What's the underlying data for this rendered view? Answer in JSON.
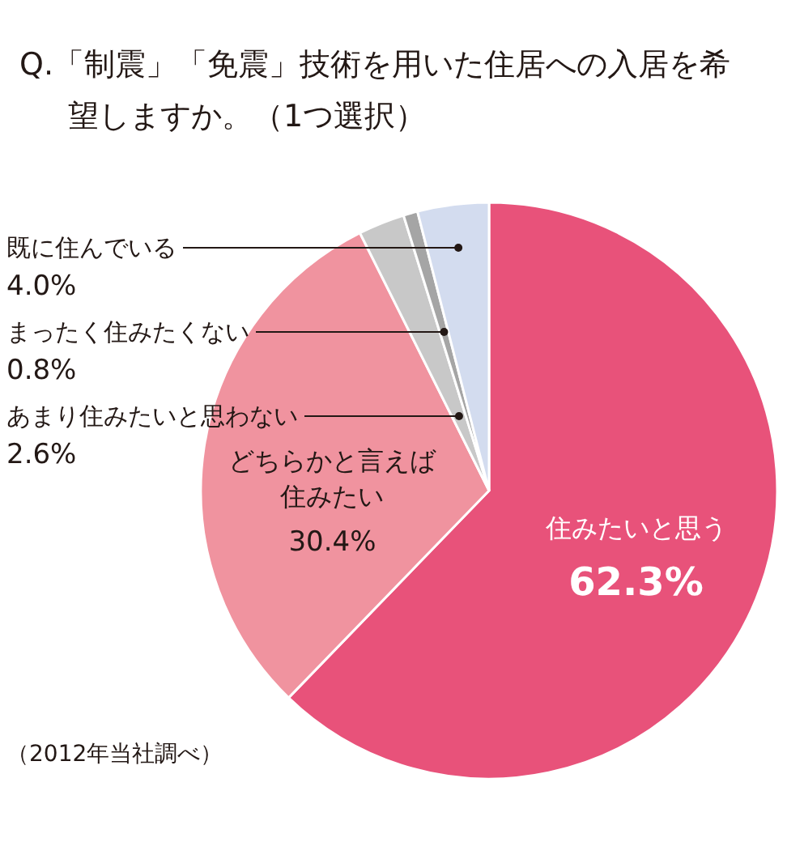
{
  "chart_data": {
    "type": "pie",
    "title": "Q.「制震」「免震」技術を用いた住居への入居を希望しますか。（1つ選択）",
    "categories": [
      "住みたいと思う",
      "どちらかと言えば住みたい",
      "あまり住みたいと思わない",
      "まったく住みたくない",
      "既に住んでいる"
    ],
    "values": [
      62.3,
      30.4,
      2.6,
      0.8,
      4.0
    ],
    "value_labels": [
      "62.3%",
      "30.4%",
      "2.6%",
      "0.8%",
      "4.0%"
    ],
    "colors": [
      "#e8527a",
      "#f0939f",
      "#c8c8c8",
      "#a5a5a5",
      "#d3dcef"
    ],
    "annotations": [
      "（2012年当社調べ）"
    ]
  }
}
